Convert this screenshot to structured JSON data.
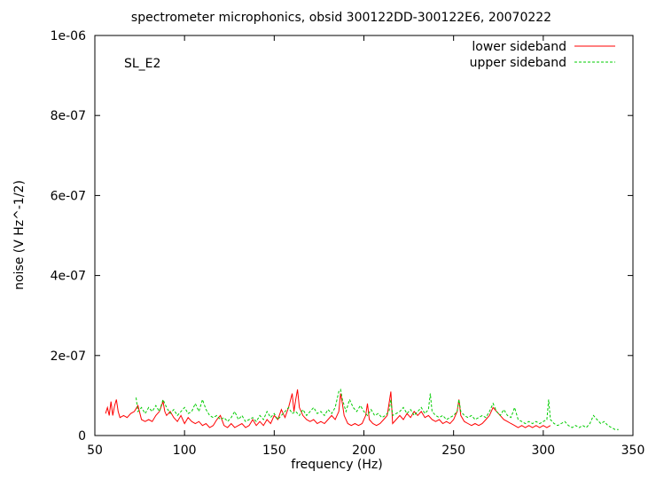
{
  "chart_data": {
    "type": "line",
    "title": "spectrometer microphonics, obsid 300122DD-300122E6, 20070222",
    "xlabel": "frequency (Hz)",
    "ylabel": "noise (V Hz^-1/2)",
    "annotation": "SL_E2",
    "xlim": [
      50,
      350
    ],
    "ylim": [
      0,
      1e-06
    ],
    "x_ticks": [
      50,
      100,
      150,
      200,
      250,
      300,
      350
    ],
    "x_tick_labels": [
      "50",
      "100",
      "150",
      "200",
      "250",
      "300",
      "350"
    ],
    "y_ticks": [
      0,
      2e-07,
      4e-07,
      6e-07,
      8e-07,
      1e-06
    ],
    "y_tick_labels": [
      "0",
      "2e-07",
      "4e-07",
      "6e-07",
      "8e-07",
      "1e-06"
    ],
    "grid": false,
    "legend_position": "top-right",
    "series": [
      {
        "name": "lower sideband",
        "color": "#ff0000",
        "dash": "solid",
        "points": [
          [
            56,
            5.5e-08
          ],
          [
            57,
            7e-08
          ],
          [
            58,
            5e-08
          ],
          [
            59,
            8.5e-08
          ],
          [
            60,
            5e-08
          ],
          [
            61,
            7.5e-08
          ],
          [
            62,
            9e-08
          ],
          [
            63,
            6e-08
          ],
          [
            64,
            4.5e-08
          ],
          [
            66,
            5e-08
          ],
          [
            68,
            4.5e-08
          ],
          [
            70,
            5.5e-08
          ],
          [
            72,
            6e-08
          ],
          [
            74,
            7.5e-08
          ],
          [
            76,
            4e-08
          ],
          [
            78,
            3.5e-08
          ],
          [
            80,
            4e-08
          ],
          [
            82,
            3.5e-08
          ],
          [
            84,
            5e-08
          ],
          [
            86,
            6e-08
          ],
          [
            88,
            8.5e-08
          ],
          [
            89,
            6e-08
          ],
          [
            90,
            5e-08
          ],
          [
            92,
            6e-08
          ],
          [
            94,
            4.5e-08
          ],
          [
            96,
            3.5e-08
          ],
          [
            98,
            5e-08
          ],
          [
            100,
            3e-08
          ],
          [
            102,
            4.5e-08
          ],
          [
            104,
            3.5e-08
          ],
          [
            106,
            3e-08
          ],
          [
            108,
            3.5e-08
          ],
          [
            110,
            2.5e-08
          ],
          [
            112,
            3e-08
          ],
          [
            114,
            2e-08
          ],
          [
            116,
            2.5e-08
          ],
          [
            118,
            4e-08
          ],
          [
            120,
            5e-08
          ],
          [
            122,
            2.5e-08
          ],
          [
            124,
            2e-08
          ],
          [
            126,
            3e-08
          ],
          [
            128,
            2e-08
          ],
          [
            130,
            2.5e-08
          ],
          [
            132,
            3e-08
          ],
          [
            134,
            2e-08
          ],
          [
            136,
            2.5e-08
          ],
          [
            138,
            4e-08
          ],
          [
            140,
            2.5e-08
          ],
          [
            142,
            3.5e-08
          ],
          [
            144,
            2.5e-08
          ],
          [
            146,
            4e-08
          ],
          [
            148,
            3e-08
          ],
          [
            150,
            5e-08
          ],
          [
            152,
            4e-08
          ],
          [
            154,
            6.5e-08
          ],
          [
            156,
            4.5e-08
          ],
          [
            158,
            7e-08
          ],
          [
            160,
            1.05e-07
          ],
          [
            161,
            6e-08
          ],
          [
            162,
            9e-08
          ],
          [
            163,
            1.15e-07
          ],
          [
            164,
            7e-08
          ],
          [
            166,
            5e-08
          ],
          [
            168,
            4e-08
          ],
          [
            170,
            3.5e-08
          ],
          [
            172,
            4e-08
          ],
          [
            174,
            3e-08
          ],
          [
            176,
            3.5e-08
          ],
          [
            178,
            3e-08
          ],
          [
            180,
            4e-08
          ],
          [
            182,
            5e-08
          ],
          [
            184,
            4e-08
          ],
          [
            186,
            6e-08
          ],
          [
            187,
            1.05e-07
          ],
          [
            188,
            8e-08
          ],
          [
            189,
            5e-08
          ],
          [
            191,
            3e-08
          ],
          [
            193,
            2.5e-08
          ],
          [
            195,
            3e-08
          ],
          [
            197,
            2.5e-08
          ],
          [
            199,
            3e-08
          ],
          [
            201,
            5e-08
          ],
          [
            202,
            8e-08
          ],
          [
            203,
            4e-08
          ],
          [
            205,
            3e-08
          ],
          [
            207,
            2.5e-08
          ],
          [
            209,
            3e-08
          ],
          [
            211,
            4e-08
          ],
          [
            213,
            5e-08
          ],
          [
            215,
            1.1e-07
          ],
          [
            216,
            3e-08
          ],
          [
            218,
            4e-08
          ],
          [
            220,
            5e-08
          ],
          [
            222,
            4e-08
          ],
          [
            224,
            5.5e-08
          ],
          [
            226,
            4.5e-08
          ],
          [
            228,
            6e-08
          ],
          [
            230,
            5e-08
          ],
          [
            232,
            6e-08
          ],
          [
            234,
            4.5e-08
          ],
          [
            236,
            5e-08
          ],
          [
            238,
            4e-08
          ],
          [
            240,
            3.5e-08
          ],
          [
            242,
            4e-08
          ],
          [
            244,
            3e-08
          ],
          [
            246,
            3.5e-08
          ],
          [
            248,
            3e-08
          ],
          [
            250,
            4e-08
          ],
          [
            252,
            6e-08
          ],
          [
            253,
            9e-08
          ],
          [
            254,
            5e-08
          ],
          [
            256,
            3.5e-08
          ],
          [
            258,
            3e-08
          ],
          [
            260,
            2.5e-08
          ],
          [
            262,
            3e-08
          ],
          [
            264,
            2.5e-08
          ],
          [
            266,
            3e-08
          ],
          [
            268,
            4e-08
          ],
          [
            270,
            5e-08
          ],
          [
            272,
            7e-08
          ],
          [
            274,
            6e-08
          ],
          [
            276,
            5e-08
          ],
          [
            278,
            4e-08
          ],
          [
            280,
            3.5e-08
          ],
          [
            282,
            3e-08
          ],
          [
            284,
            2.5e-08
          ],
          [
            286,
            2e-08
          ],
          [
            288,
            2.5e-08
          ],
          [
            290,
            2e-08
          ],
          [
            292,
            2.5e-08
          ],
          [
            294,
            2e-08
          ],
          [
            296,
            2.5e-08
          ],
          [
            298,
            2e-08
          ],
          [
            300,
            2.5e-08
          ],
          [
            302,
            2e-08
          ],
          [
            304,
            2.5e-08
          ]
        ]
      },
      {
        "name": "upper sideband",
        "color": "#00cc00",
        "dash": "dashed",
        "points": [
          [
            73,
            9.5e-08
          ],
          [
            74,
            6e-08
          ],
          [
            76,
            7e-08
          ],
          [
            78,
            5.5e-08
          ],
          [
            80,
            7e-08
          ],
          [
            82,
            6e-08
          ],
          [
            84,
            7.5e-08
          ],
          [
            86,
            6e-08
          ],
          [
            88,
            9e-08
          ],
          [
            90,
            7e-08
          ],
          [
            92,
            5.5e-08
          ],
          [
            94,
            6.5e-08
          ],
          [
            96,
            5e-08
          ],
          [
            98,
            6e-08
          ],
          [
            100,
            7e-08
          ],
          [
            102,
            5.5e-08
          ],
          [
            104,
            6e-08
          ],
          [
            106,
            8e-08
          ],
          [
            108,
            6e-08
          ],
          [
            110,
            9e-08
          ],
          [
            112,
            6.5e-08
          ],
          [
            114,
            5e-08
          ],
          [
            116,
            4.5e-08
          ],
          [
            118,
            5e-08
          ],
          [
            120,
            4e-08
          ],
          [
            122,
            4.5e-08
          ],
          [
            124,
            3.5e-08
          ],
          [
            126,
            4.5e-08
          ],
          [
            128,
            6e-08
          ],
          [
            130,
            4e-08
          ],
          [
            132,
            5e-08
          ],
          [
            134,
            3.5e-08
          ],
          [
            136,
            4e-08
          ],
          [
            138,
            4.5e-08
          ],
          [
            140,
            3.5e-08
          ],
          [
            142,
            5e-08
          ],
          [
            144,
            4e-08
          ],
          [
            146,
            6e-08
          ],
          [
            148,
            4.5e-08
          ],
          [
            150,
            5.5e-08
          ],
          [
            152,
            4e-08
          ],
          [
            154,
            5e-08
          ],
          [
            156,
            6e-08
          ],
          [
            158,
            7e-08
          ],
          [
            160,
            5.5e-08
          ],
          [
            162,
            6e-08
          ],
          [
            164,
            5e-08
          ],
          [
            166,
            6.5e-08
          ],
          [
            168,
            5e-08
          ],
          [
            170,
            6e-08
          ],
          [
            172,
            7e-08
          ],
          [
            174,
            5.5e-08
          ],
          [
            176,
            6e-08
          ],
          [
            178,
            5e-08
          ],
          [
            180,
            6.5e-08
          ],
          [
            182,
            5.5e-08
          ],
          [
            184,
            7e-08
          ],
          [
            186,
            1.1e-07
          ],
          [
            187,
            1.15e-07
          ],
          [
            188,
            9e-08
          ],
          [
            190,
            6e-08
          ],
          [
            192,
            9e-08
          ],
          [
            194,
            7e-08
          ],
          [
            196,
            6e-08
          ],
          [
            198,
            7.5e-08
          ],
          [
            200,
            6e-08
          ],
          [
            202,
            5e-08
          ],
          [
            204,
            6.5e-08
          ],
          [
            206,
            5e-08
          ],
          [
            208,
            5.5e-08
          ],
          [
            210,
            4.5e-08
          ],
          [
            212,
            5e-08
          ],
          [
            214,
            6e-08
          ],
          [
            215,
            9e-08
          ],
          [
            216,
            5e-08
          ],
          [
            218,
            5.5e-08
          ],
          [
            220,
            6e-08
          ],
          [
            222,
            7e-08
          ],
          [
            224,
            5.5e-08
          ],
          [
            226,
            6.5e-08
          ],
          [
            228,
            5e-08
          ],
          [
            230,
            6e-08
          ],
          [
            232,
            7e-08
          ],
          [
            234,
            5.5e-08
          ],
          [
            236,
            6.5e-08
          ],
          [
            237,
            1.05e-07
          ],
          [
            238,
            6e-08
          ],
          [
            240,
            5e-08
          ],
          [
            242,
            4.5e-08
          ],
          [
            244,
            5e-08
          ],
          [
            246,
            4e-08
          ],
          [
            248,
            4.5e-08
          ],
          [
            250,
            5e-08
          ],
          [
            252,
            6e-08
          ],
          [
            253,
            9e-08
          ],
          [
            254,
            6e-08
          ],
          [
            256,
            5e-08
          ],
          [
            258,
            4.5e-08
          ],
          [
            260,
            5e-08
          ],
          [
            262,
            4e-08
          ],
          [
            264,
            4.5e-08
          ],
          [
            266,
            5e-08
          ],
          [
            268,
            4.5e-08
          ],
          [
            270,
            6e-08
          ],
          [
            272,
            8e-08
          ],
          [
            274,
            6e-08
          ],
          [
            276,
            5e-08
          ],
          [
            278,
            6.5e-08
          ],
          [
            280,
            5e-08
          ],
          [
            282,
            4.5e-08
          ],
          [
            284,
            7e-08
          ],
          [
            286,
            4e-08
          ],
          [
            288,
            3.5e-08
          ],
          [
            290,
            3e-08
          ],
          [
            292,
            3.5e-08
          ],
          [
            294,
            3e-08
          ],
          [
            296,
            3.5e-08
          ],
          [
            298,
            3e-08
          ],
          [
            300,
            3.5e-08
          ],
          [
            302,
            4e-08
          ],
          [
            303,
            9e-08
          ],
          [
            304,
            4e-08
          ],
          [
            306,
            3e-08
          ],
          [
            308,
            2.5e-08
          ],
          [
            310,
            3e-08
          ],
          [
            312,
            3.5e-08
          ],
          [
            314,
            2.5e-08
          ],
          [
            316,
            2e-08
          ],
          [
            318,
            2.5e-08
          ],
          [
            320,
            2e-08
          ],
          [
            322,
            2.5e-08
          ],
          [
            324,
            2e-08
          ],
          [
            326,
            3e-08
          ],
          [
            328,
            5e-08
          ],
          [
            330,
            4e-08
          ],
          [
            332,
            3e-08
          ],
          [
            334,
            3.5e-08
          ],
          [
            336,
            2.5e-08
          ],
          [
            338,
            2e-08
          ],
          [
            340,
            1.5e-08
          ],
          [
            342,
            1.5e-08
          ]
        ]
      }
    ]
  }
}
